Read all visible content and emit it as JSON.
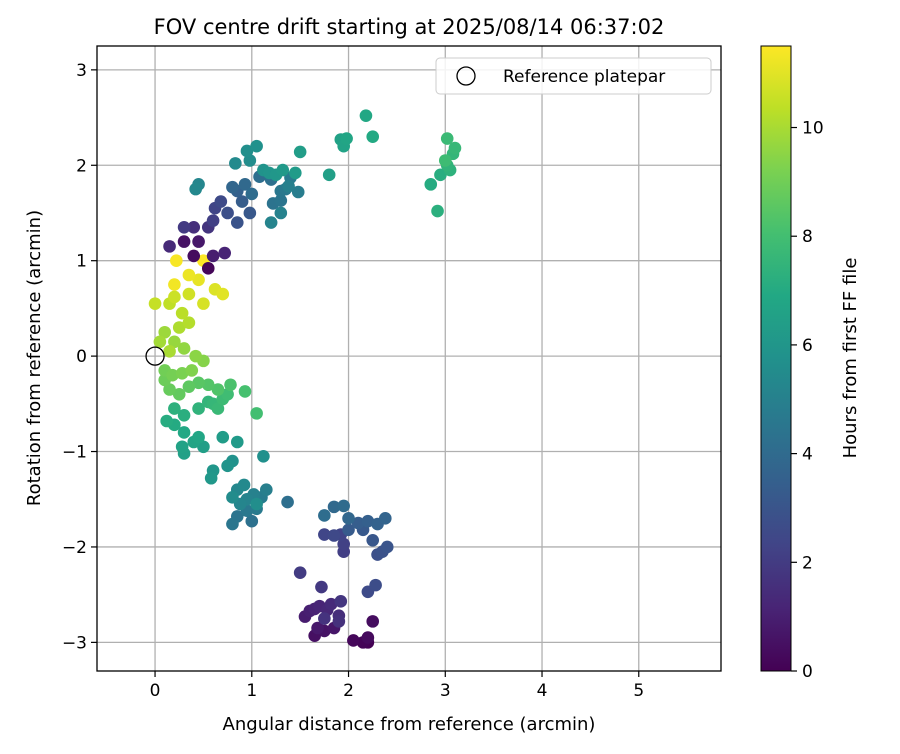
{
  "chart_data": {
    "type": "scatter",
    "title": "FOV centre drift starting at 2025/08/14 06:37:02",
    "xlabel": "Angular distance from reference (arcmin)",
    "ylabel": "Rotation from reference (arcmin)",
    "xlim": [
      -0.6,
      5.85
    ],
    "ylim": [
      -3.3,
      3.25
    ],
    "xticks": [
      0,
      1,
      2,
      3,
      4,
      5
    ],
    "yticks": [
      -3,
      -2,
      -1,
      0,
      1,
      2,
      3
    ],
    "grid": true,
    "legend": {
      "position": "top-right",
      "entries": [
        "Reference platepar"
      ]
    },
    "reference_point": {
      "x": 0,
      "y": 0
    },
    "colorbar": {
      "label": "Hours from first FF file",
      "min": 0,
      "max": 11.5,
      "ticks": [
        0,
        2,
        4,
        6,
        8,
        10
      ],
      "colormap": "viridis"
    },
    "series": [
      {
        "points": [
          [
            2.2,
            -3.0,
            0.0
          ],
          [
            2.15,
            -3.0,
            0.1
          ],
          [
            2.05,
            -2.98,
            0.2
          ],
          [
            2.2,
            -2.95,
            0.3
          ],
          [
            2.25,
            -2.78,
            0.4
          ],
          [
            1.65,
            -2.93,
            0.5
          ],
          [
            1.75,
            -2.88,
            0.6
          ],
          [
            1.85,
            -2.85,
            0.7
          ],
          [
            1.68,
            -2.85,
            0.8
          ],
          [
            1.55,
            -2.73,
            0.9
          ],
          [
            1.6,
            -2.67,
            1.0
          ],
          [
            1.65,
            -2.65,
            1.1
          ],
          [
            1.7,
            -2.62,
            1.2
          ],
          [
            1.78,
            -2.66,
            1.3
          ],
          [
            1.82,
            -2.6,
            1.4
          ],
          [
            1.9,
            -2.72,
            1.5
          ],
          [
            1.9,
            -2.78,
            1.6
          ],
          [
            1.75,
            -2.75,
            1.7
          ],
          [
            1.92,
            -2.57,
            1.8
          ],
          [
            1.72,
            -2.42,
            1.9
          ],
          [
            1.5,
            -2.27,
            2.0
          ],
          [
            1.95,
            -2.05,
            2.1
          ],
          [
            1.95,
            -1.97,
            2.2
          ],
          [
            1.92,
            -1.87,
            2.3
          ],
          [
            1.75,
            -1.87,
            2.4
          ],
          [
            1.85,
            -1.88,
            2.5
          ],
          [
            2.2,
            -2.47,
            2.6
          ],
          [
            2.28,
            -2.4,
            2.7
          ],
          [
            2.3,
            -2.08,
            2.8
          ],
          [
            2.35,
            -2.05,
            2.9
          ],
          [
            2.4,
            -2.0,
            3.0
          ],
          [
            2.25,
            -1.93,
            3.1
          ],
          [
            2.15,
            -1.82,
            3.2
          ],
          [
            2.0,
            -1.82,
            3.3
          ],
          [
            2.1,
            -1.75,
            3.4
          ],
          [
            2.2,
            -1.73,
            3.5
          ],
          [
            2.3,
            -1.76,
            3.6
          ],
          [
            2.38,
            -1.7,
            3.7
          ],
          [
            2.0,
            -1.7,
            3.8
          ],
          [
            1.85,
            -1.58,
            3.9
          ],
          [
            1.95,
            -1.57,
            4.0
          ],
          [
            1.75,
            -1.67,
            4.1
          ],
          [
            1.37,
            -1.53,
            4.2
          ],
          [
            1.0,
            -1.73,
            4.3
          ],
          [
            0.85,
            -1.68,
            4.4
          ],
          [
            0.8,
            -1.76,
            4.5
          ],
          [
            0.95,
            -1.62,
            4.6
          ],
          [
            1.05,
            -1.6,
            4.7
          ],
          [
            1.1,
            -1.48,
            4.8
          ],
          [
            1.15,
            -1.4,
            4.9
          ],
          [
            1.02,
            -1.45,
            5.0
          ],
          [
            0.95,
            -1.5,
            5.1
          ],
          [
            0.88,
            -1.55,
            5.2
          ],
          [
            0.85,
            -1.4,
            5.3
          ],
          [
            0.92,
            -1.35,
            5.4
          ],
          [
            0.8,
            -1.48,
            5.5
          ],
          [
            1.05,
            -1.55,
            5.6
          ],
          [
            1.12,
            -1.05,
            5.7
          ],
          [
            0.8,
            -1.1,
            5.8
          ],
          [
            0.75,
            -1.15,
            5.9
          ],
          [
            0.6,
            -1.2,
            6.0
          ],
          [
            0.58,
            -1.28,
            6.1
          ],
          [
            0.85,
            -0.9,
            6.2
          ],
          [
            0.7,
            -0.85,
            6.3
          ],
          [
            0.5,
            -0.95,
            6.4
          ],
          [
            0.3,
            -1.02,
            6.5
          ],
          [
            0.28,
            -0.95,
            6.6
          ],
          [
            0.4,
            -0.9,
            6.7
          ],
          [
            0.45,
            -0.85,
            6.8
          ],
          [
            0.3,
            -0.8,
            6.9
          ],
          [
            0.2,
            -0.72,
            7.0
          ],
          [
            0.12,
            -0.68,
            7.1
          ],
          [
            0.3,
            -0.62,
            7.2
          ],
          [
            0.2,
            -0.55,
            7.3
          ],
          [
            0.45,
            -0.55,
            7.4
          ],
          [
            0.55,
            -0.48,
            7.5
          ],
          [
            0.6,
            -0.5,
            7.6
          ],
          [
            0.65,
            -0.55,
            7.7
          ],
          [
            0.7,
            -0.45,
            7.8
          ],
          [
            0.75,
            -0.4,
            7.9
          ],
          [
            1.05,
            -0.6,
            8.0
          ],
          [
            0.93,
            -0.37,
            8.1
          ],
          [
            0.78,
            -0.3,
            8.2
          ],
          [
            0.65,
            -0.35,
            8.3
          ],
          [
            0.55,
            -0.3,
            8.4
          ],
          [
            0.45,
            -0.28,
            8.5
          ],
          [
            0.35,
            -0.32,
            8.6
          ],
          [
            0.25,
            -0.4,
            8.7
          ],
          [
            0.15,
            -0.35,
            8.8
          ],
          [
            0.1,
            -0.25,
            8.9
          ],
          [
            0.1,
            -0.15,
            9.0
          ],
          [
            0.18,
            -0.2,
            9.1
          ],
          [
            0.28,
            -0.18,
            9.2
          ],
          [
            0.38,
            -0.15,
            9.3
          ],
          [
            0.5,
            -0.05,
            9.4
          ],
          [
            0.42,
            0.0,
            9.5
          ],
          [
            0.3,
            0.08,
            9.6
          ],
          [
            0.2,
            0.15,
            9.7
          ],
          [
            0.1,
            0.25,
            9.8
          ],
          [
            0.05,
            0.15,
            9.9
          ],
          [
            0.15,
            0.05,
            10.0
          ],
          [
            0.25,
            0.3,
            10.1
          ],
          [
            0.35,
            0.35,
            10.2
          ],
          [
            0.28,
            0.45,
            10.3
          ],
          [
            0.15,
            0.55,
            10.4
          ],
          [
            0.0,
            0.55,
            10.5
          ],
          [
            0.2,
            0.62,
            10.6
          ],
          [
            0.35,
            0.65,
            10.7
          ],
          [
            0.5,
            0.55,
            10.8
          ],
          [
            0.62,
            0.7,
            10.9
          ],
          [
            0.7,
            0.65,
            11.0
          ],
          [
            0.45,
            0.8,
            11.1
          ],
          [
            0.35,
            0.85,
            11.2
          ],
          [
            0.2,
            0.75,
            11.3
          ],
          [
            0.22,
            1.0,
            11.4
          ],
          [
            0.5,
            1.0,
            11.5
          ],
          [
            0.55,
            0.92,
            0.15
          ],
          [
            0.4,
            1.05,
            0.35
          ],
          [
            0.3,
            1.2,
            0.55
          ],
          [
            0.45,
            1.2,
            0.75
          ],
          [
            0.6,
            1.05,
            0.95
          ],
          [
            0.72,
            1.08,
            1.15
          ],
          [
            0.15,
            1.15,
            1.35
          ],
          [
            0.4,
            1.35,
            1.55
          ],
          [
            0.55,
            1.35,
            1.75
          ],
          [
            0.3,
            1.35,
            1.95
          ],
          [
            0.6,
            1.42,
            2.15
          ],
          [
            0.62,
            1.55,
            2.35
          ],
          [
            0.68,
            1.62,
            2.55
          ],
          [
            0.75,
            1.5,
            2.75
          ],
          [
            0.85,
            1.4,
            2.95
          ],
          [
            0.98,
            1.5,
            3.15
          ],
          [
            0.9,
            1.62,
            3.35
          ],
          [
            0.85,
            1.73,
            3.55
          ],
          [
            0.8,
            1.77,
            3.75
          ],
          [
            0.93,
            1.8,
            3.9
          ],
          [
            1.0,
            1.7,
            4.05
          ],
          [
            1.08,
            1.88,
            4.15
          ],
          [
            1.2,
            1.85,
            4.25
          ],
          [
            1.22,
            1.6,
            4.35
          ],
          [
            1.3,
            1.63,
            4.45
          ],
          [
            1.3,
            1.73,
            4.55
          ],
          [
            1.35,
            1.75,
            4.65
          ],
          [
            1.4,
            1.87,
            4.75
          ],
          [
            1.48,
            1.72,
            4.85
          ],
          [
            1.38,
            1.78,
            4.95
          ],
          [
            1.3,
            1.5,
            5.05
          ],
          [
            1.2,
            1.4,
            5.15
          ],
          [
            0.45,
            1.8,
            5.25
          ],
          [
            0.42,
            1.75,
            5.35
          ],
          [
            0.83,
            2.02,
            5.45
          ],
          [
            0.98,
            2.05,
            5.55
          ],
          [
            0.95,
            2.15,
            5.65
          ],
          [
            1.05,
            2.2,
            5.75
          ],
          [
            1.12,
            1.95,
            5.85
          ],
          [
            1.18,
            1.92,
            5.95
          ],
          [
            1.25,
            1.9,
            6.05
          ],
          [
            1.32,
            1.95,
            6.15
          ],
          [
            1.45,
            1.92,
            6.25
          ],
          [
            1.5,
            2.14,
            6.35
          ],
          [
            1.8,
            1.9,
            6.45
          ],
          [
            1.92,
            2.27,
            6.55
          ],
          [
            1.95,
            2.2,
            6.65
          ],
          [
            1.98,
            2.28,
            6.75
          ],
          [
            2.18,
            2.52,
            6.85
          ],
          [
            2.25,
            2.3,
            6.95
          ],
          [
            2.85,
            1.8,
            7.05
          ],
          [
            2.95,
            1.9,
            7.15
          ],
          [
            2.92,
            1.52,
            7.25
          ],
          [
            3.05,
            1.95,
            7.35
          ],
          [
            3.02,
            2.0,
            7.45
          ],
          [
            3.08,
            2.12,
            7.55
          ],
          [
            3.1,
            2.18,
            7.65
          ],
          [
            3.02,
            2.28,
            7.75
          ],
          [
            3.0,
            2.05,
            7.85
          ]
        ]
      }
    ]
  }
}
